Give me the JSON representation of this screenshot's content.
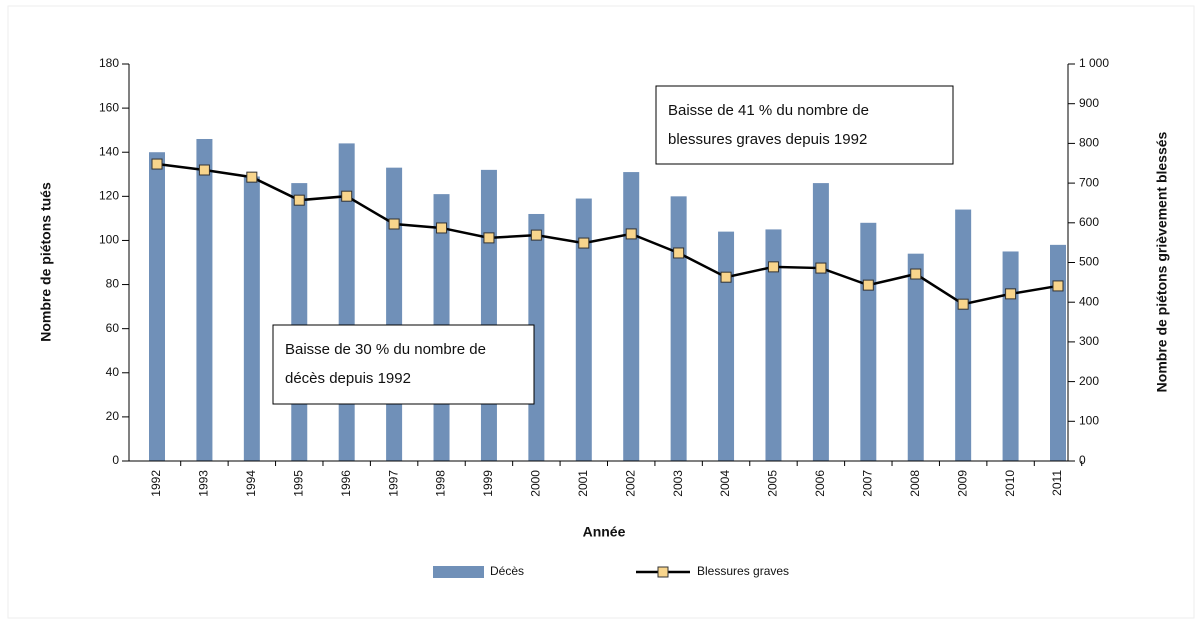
{
  "chart_data": {
    "type": "bar_line",
    "categories": [
      "1992",
      "1993",
      "1994",
      "1995",
      "1996",
      "1997",
      "1998",
      "1999",
      "2000",
      "2001",
      "2002",
      "2003",
      "2004",
      "2005",
      "2006",
      "2007",
      "2008",
      "2009",
      "2010",
      "2011"
    ],
    "series": [
      {
        "name": "Décès",
        "type": "bar",
        "color": "#7090b8",
        "values": [
          140,
          146,
          129,
          126,
          144,
          133,
          121,
          132,
          112,
          119,
          131,
          120,
          104,
          105,
          126,
          108,
          94,
          114,
          95,
          98
        ]
      },
      {
        "name": "Blessures graves",
        "type": "line",
        "axis": "y2",
        "color": "#000000",
        "marker_color": "#f8d58c",
        "values": [
          748,
          733,
          715,
          657,
          667,
          597,
          587,
          562,
          569,
          549,
          572,
          524,
          463,
          489,
          486,
          443,
          471,
          395,
          421,
          441
        ]
      }
    ],
    "xlabel": "Année",
    "ylabel": "Nombre de piétons tués",
    "y2label": "Nombre de piétons grièvement blessés",
    "ylim": [
      0,
      180
    ],
    "yticks": [
      0,
      20,
      40,
      60,
      80,
      100,
      120,
      140,
      160,
      180
    ],
    "y2lim": [
      0,
      1000
    ],
    "y2ticks": [
      0,
      100,
      200,
      300,
      400,
      500,
      600,
      700,
      800,
      900,
      {
        "value": 1000,
        "label": "1 000"
      }
    ],
    "annotations": [
      {
        "lines": [
          "Baisse de 41 % du nombre de",
          "blessures graves depuis 1992"
        ]
      },
      {
        "lines": [
          "Baisse de 30 % du nombre de",
          "décès depuis 1992"
        ]
      }
    ]
  }
}
